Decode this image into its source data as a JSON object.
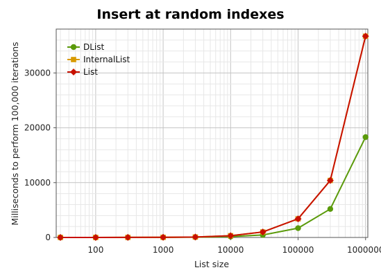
{
  "chart_data": {
    "type": "line",
    "title": "Insert at random indexes",
    "xlabel": "List size",
    "ylabel": "Milliseconds to perform 100,000 iterations",
    "xscale": "log",
    "xlim": [
      26,
      1080000
    ],
    "ylim": [
      0,
      38000
    ],
    "xticks": [
      100,
      1000,
      10000,
      100000,
      1000000
    ],
    "xtick_labels": [
      "100",
      "1000",
      "10000",
      "100000",
      "1000000"
    ],
    "yticks": [
      0,
      10000,
      20000,
      30000
    ],
    "ytick_labels": [
      "0",
      "10000",
      "20000",
      "30000"
    ],
    "grid": true,
    "legend_position": "top-left",
    "x": [
      30,
      100,
      300,
      1000,
      3000,
      10000,
      30000,
      100000,
      300000,
      1000000
    ],
    "series": [
      {
        "name": "DList",
        "color": "#5a9a0a",
        "marker": "circle",
        "values": [
          2,
          4,
          8,
          20,
          55,
          160,
          450,
          1700,
          5200,
          18300
        ]
      },
      {
        "name": "InternalList",
        "color": "#d89a00",
        "marker": "square",
        "values": [
          2,
          5,
          10,
          25,
          80,
          320,
          1000,
          3400,
          10400,
          36700
        ]
      },
      {
        "name": "List",
        "color": "#c81000",
        "marker": "diamond",
        "values": [
          2,
          5,
          10,
          25,
          80,
          320,
          1000,
          3400,
          10400,
          36700
        ]
      }
    ]
  }
}
